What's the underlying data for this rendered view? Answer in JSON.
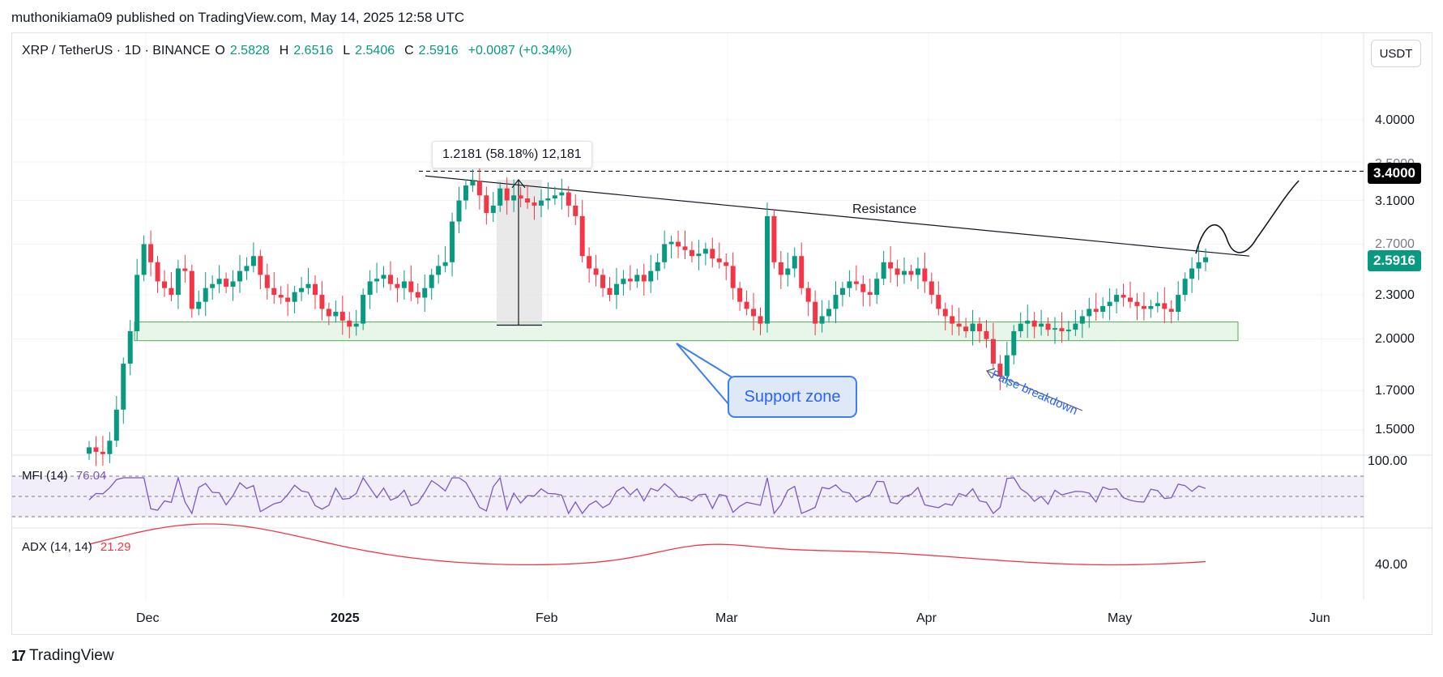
{
  "header": {
    "publisher_line": "muthonikiama09 published on TradingView.com, May 14, 2025 12:58 UTC",
    "symbol": "XRP / TetherUS · 1D · BINANCE",
    "open_key": "O",
    "open": "2.5828",
    "high_key": "H",
    "high": "2.6516",
    "low_key": "L",
    "low": "2.5406",
    "close_key": "C",
    "close": "2.5916",
    "change": "+0.0087 (+0.34%)",
    "currency_button": "USDT"
  },
  "price_badges": {
    "target": "3.4000",
    "current": "2.5916"
  },
  "chart_data": {
    "type": "candlestick",
    "title": "XRP / TetherUS · 1D · BINANCE",
    "y_axis": {
      "scale": "log",
      "ticks": [
        "4.0000",
        "3.5000",
        "3.1000",
        "2.7000",
        "2.3000",
        "2.0000",
        "1.7000",
        "1.5000"
      ]
    },
    "x_axis": {
      "ticks": [
        "Dec",
        "2025",
        "Feb",
        "Mar",
        "Apr",
        "May",
        "Jun"
      ]
    },
    "support_zone": [
      2.0,
      2.1
    ],
    "resistance_line": {
      "label": "Resistance",
      "from": 3.35,
      "to": 2.6
    },
    "target_level": 3.4,
    "measure": {
      "label": "1.2181 (58.18%) 12,181",
      "from": 2.09,
      "to": 3.31
    },
    "annotations": [
      "Support zone",
      "False breakdown",
      "Resistance"
    ],
    "closes": [
      1.42,
      1.4,
      1.39,
      1.45,
      1.6,
      1.85,
      2.05,
      2.45,
      2.7,
      2.55,
      2.4,
      2.35,
      2.3,
      2.5,
      2.48,
      2.2,
      2.25,
      2.35,
      2.38,
      2.42,
      2.36,
      2.4,
      2.48,
      2.52,
      2.6,
      2.45,
      2.35,
      2.3,
      2.28,
      2.25,
      2.32,
      2.35,
      2.38,
      2.3,
      2.2,
      2.15,
      2.18,
      2.12,
      2.08,
      2.1,
      2.3,
      2.4,
      2.42,
      2.45,
      2.38,
      2.35,
      2.4,
      2.32,
      2.28,
      2.35,
      2.45,
      2.52,
      2.55,
      2.9,
      3.1,
      3.25,
      3.3,
      3.15,
      2.98,
      3.05,
      3.22,
      3.1,
      3.15,
      3.12,
      3.08,
      3.05,
      3.1,
      3.12,
      3.15,
      3.18,
      3.05,
      2.95,
      2.6,
      2.5,
      2.45,
      2.35,
      2.3,
      2.38,
      2.42,
      2.4,
      2.45,
      2.4,
      2.48,
      2.55,
      2.7,
      2.72,
      2.68,
      2.65,
      2.6,
      2.62,
      2.66,
      2.58,
      2.55,
      2.52,
      2.35,
      2.25,
      2.2,
      2.15,
      2.1,
      2.95,
      2.55,
      2.45,
      2.5,
      2.6,
      2.35,
      2.25,
      2.1,
      2.15,
      2.2,
      2.3,
      2.35,
      2.4,
      2.38,
      2.32,
      2.3,
      2.42,
      2.55,
      2.5,
      2.45,
      2.48,
      2.45,
      2.5,
      2.4,
      2.3,
      2.2,
      2.15,
      2.1,
      2.08,
      2.05,
      2.1,
      2.05,
      2.0,
      1.85,
      1.78,
      1.9,
      2.05,
      2.1,
      2.12,
      2.08,
      2.1,
      2.06,
      2.07,
      2.05,
      2.06,
      2.1,
      2.15,
      2.2,
      2.18,
      2.22,
      2.25,
      2.3,
      2.28,
      2.25,
      2.22,
      2.2,
      2.22,
      2.24,
      2.2,
      2.18,
      2.3,
      2.42,
      2.5,
      2.55,
      2.59
    ]
  },
  "indicators": {
    "mfi": {
      "name": "MFI (14)",
      "value": "76.04",
      "scale_label": "100.00"
    },
    "adx": {
      "name": "ADX (14, 14)",
      "value": "21.29",
      "scale_label": "40.00"
    }
  },
  "drawings": {
    "measure_label": "1.2181 (58.18%) 12,181",
    "resistance_label": "Resistance",
    "support_label": "Support zone",
    "false_breakdown_label": "False breakdown"
  },
  "x_labels": {
    "dec": "Dec",
    "y2025": "2025",
    "feb": "Feb",
    "mar": "Mar",
    "apr": "Apr",
    "may": "May",
    "jun": "Jun"
  },
  "y_labels": {
    "p4000": "4.0000",
    "p3500": "3.5000",
    "p3100": "3.1000",
    "p2700": "2.7000",
    "p2300": "2.3000",
    "p2000": "2.0000",
    "p1700": "1.7000",
    "p1500": "1.5000"
  },
  "footer": {
    "brand": "TradingView",
    "logo": "17"
  },
  "colors": {
    "up": "#089981",
    "down": "#f23645",
    "mfi": "#7e57c2",
    "adx": "#f23645",
    "support_fill": "#e8f5e9"
  }
}
